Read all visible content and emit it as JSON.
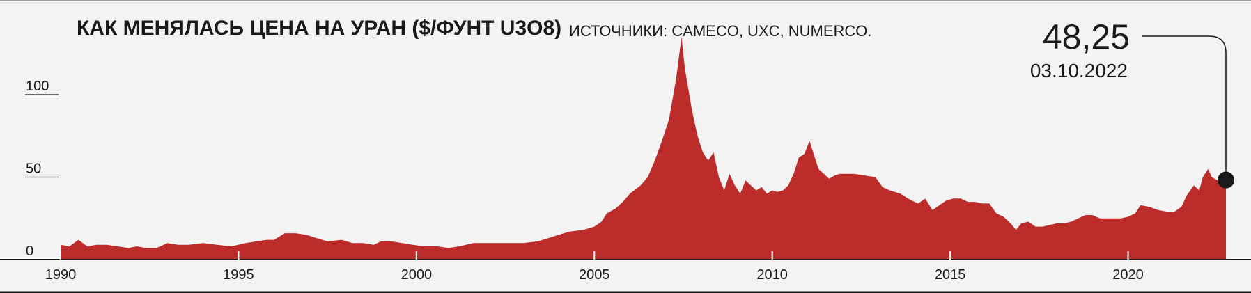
{
  "chart_data": {
    "type": "area",
    "title": "КАК МЕНЯЛАСЬ ЦЕНА НА УРАН ($/ФУНТ U3O8)",
    "source": "ИСТОЧНИКИ: CAMECO, UXC, NUMERCO.",
    "xlim": [
      1990,
      2022.75
    ],
    "ylim": [
      0,
      135
    ],
    "grid": false,
    "y_ticks": [
      {
        "value": 0,
        "label": "0"
      },
      {
        "value": 50,
        "label": "50"
      },
      {
        "value": 100,
        "label": "100"
      }
    ],
    "x_ticks": [
      {
        "value": 1990,
        "label": "1990"
      },
      {
        "value": 1995,
        "label": "1995"
      },
      {
        "value": 2000,
        "label": "2000"
      },
      {
        "value": 2005,
        "label": "2005"
      },
      {
        "value": 2010,
        "label": "2010"
      },
      {
        "value": 2015,
        "label": "2015"
      },
      {
        "value": 2020,
        "label": "2020"
      }
    ],
    "color": "#bb2c2a",
    "series": [
      {
        "x": [
          1990.0,
          1990.25,
          1990.5,
          1990.75,
          1991.0,
          1991.3,
          1991.6,
          1991.9,
          1992.15,
          1992.4,
          1992.7,
          1993.0,
          1993.3,
          1993.6,
          1994.0,
          1994.4,
          1994.8,
          1995.2,
          1995.5,
          1995.8,
          1996.0,
          1996.3,
          1996.6,
          1996.9,
          1997.2,
          1997.5,
          1997.9,
          1998.2,
          1998.5,
          1998.8,
          1999.0,
          1999.3,
          1999.6,
          1999.9,
          2000.2,
          2000.6,
          2000.9,
          2001.2,
          2001.6,
          2002.0,
          2002.5,
          2003.0,
          2003.4,
          2003.7,
          2004.0,
          2004.3,
          2004.7,
          2005.0,
          2005.2,
          2005.35,
          2005.6,
          2005.8,
          2006.0,
          2006.3,
          2006.5,
          2006.7,
          2006.9,
          2007.1,
          2007.3,
          2007.45,
          2007.55,
          2007.75,
          2007.9,
          2008.05,
          2008.2,
          2008.35,
          2008.5,
          2008.65,
          2008.8,
          2008.95,
          2009.1,
          2009.25,
          2009.4,
          2009.55,
          2009.7,
          2009.85,
          2010.0,
          2010.15,
          2010.3,
          2010.45,
          2010.6,
          2010.75,
          2010.9,
          2011.05,
          2011.15,
          2011.3,
          2011.45,
          2011.6,
          2011.75,
          2011.9,
          2012.1,
          2012.3,
          2012.6,
          2012.9,
          2013.1,
          2013.3,
          2013.6,
          2013.9,
          2014.1,
          2014.3,
          2014.5,
          2014.7,
          2014.9,
          2015.1,
          2015.3,
          2015.5,
          2015.7,
          2015.9,
          2016.1,
          2016.3,
          2016.5,
          2016.7,
          2016.85,
          2017.0,
          2017.2,
          2017.4,
          2017.6,
          2017.8,
          2018.0,
          2018.2,
          2018.4,
          2018.6,
          2018.8,
          2019.0,
          2019.2,
          2019.4,
          2019.6,
          2019.8,
          2020.0,
          2020.2,
          2020.35,
          2020.6,
          2020.85,
          2021.1,
          2021.3,
          2021.5,
          2021.65,
          2021.85,
          2022.0,
          2022.1,
          2022.25,
          2022.35,
          2022.5,
          2022.75
        ],
        "values": [
          9,
          8,
          12,
          8,
          9,
          9,
          8,
          7,
          8,
          7,
          7,
          10,
          9,
          9,
          10,
          9,
          8,
          10,
          11,
          12,
          12,
          16,
          16,
          15,
          13,
          11,
          12,
          10,
          10,
          9,
          11,
          11,
          10,
          9,
          8,
          8,
          7,
          8,
          10,
          10,
          10,
          10,
          11,
          13,
          15,
          17,
          18,
          20,
          23,
          28,
          31,
          35,
          40,
          45,
          50,
          60,
          72,
          85,
          110,
          135,
          115,
          90,
          75,
          65,
          60,
          65,
          50,
          42,
          52,
          45,
          40,
          48,
          45,
          42,
          44,
          40,
          42,
          41,
          42,
          45,
          52,
          62,
          64,
          72,
          65,
          55,
          52,
          49,
          51,
          52,
          52,
          52,
          51,
          50,
          44,
          42,
          40,
          36,
          34,
          37,
          30,
          33,
          36,
          37,
          37,
          35,
          35,
          34,
          34,
          28,
          26,
          22,
          18,
          22,
          23,
          20,
          20,
          21,
          22,
          22,
          23,
          25,
          27,
          27,
          25,
          25,
          25,
          25,
          26,
          28,
          33,
          32,
          30,
          29,
          29,
          32,
          39,
          45,
          42,
          50,
          55,
          50,
          48.25,
          48.25
        ]
      }
    ],
    "callout": {
      "value": "48,25",
      "date": "03.10.2022",
      "x": 2022.75,
      "y": 48.25
    }
  }
}
